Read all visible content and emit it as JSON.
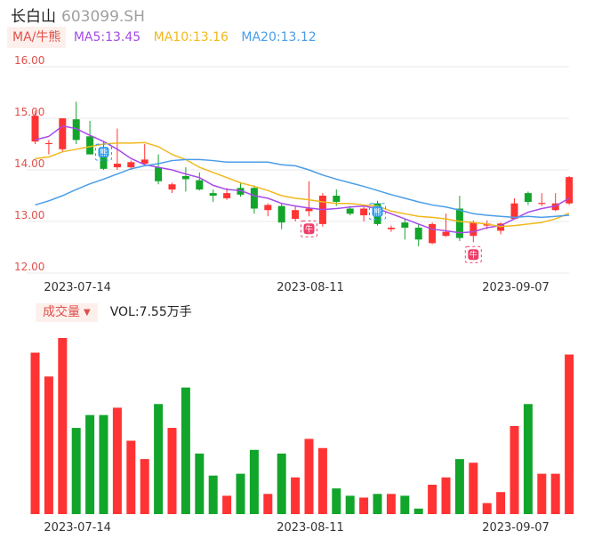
{
  "header": {
    "name": "长白山",
    "code": "603099.SH"
  },
  "ma_legend": {
    "tag": "MA/牛熊",
    "items": [
      {
        "label": "MA5:13.45",
        "color": "#a64ae8"
      },
      {
        "label": "MA10:13.16",
        "color": "#f2b81c"
      },
      {
        "label": "MA20:13.12",
        "color": "#4a9de8"
      }
    ]
  },
  "volume_legend": {
    "tag": "成交量",
    "text": "VOL:7.55万手"
  },
  "colors": {
    "up": "#ff3333",
    "down": "#12a52b",
    "grid": "#e9e9e9",
    "axis_text": "#e0504a",
    "date_text": "#333333",
    "ma5": "#a64ae8",
    "ma10": "#f2b81c",
    "ma20": "#4a9de8"
  },
  "chart_data": {
    "type": "candlestick",
    "y_ticks": [
      "16.00",
      "15.00",
      "14.00",
      "13.00",
      "12.00"
    ],
    "ylim": [
      12.0,
      16.0
    ],
    "x_tick_labels": [
      {
        "index": 3,
        "label": "2023-07-14"
      },
      {
        "index": 20,
        "label": "2023-08-11"
      },
      {
        "index": 35,
        "label": "2023-09-07"
      }
    ],
    "candles": [
      {
        "o": 14.55,
        "h": 15.15,
        "l": 14.5,
        "c": 15.05
      },
      {
        "o": 14.52,
        "h": 14.58,
        "l": 14.3,
        "c": 14.52
      },
      {
        "o": 14.4,
        "h": 15.0,
        "l": 14.35,
        "c": 15.0
      },
      {
        "o": 14.98,
        "h": 15.32,
        "l": 14.5,
        "c": 14.58
      },
      {
        "o": 14.65,
        "h": 14.95,
        "l": 14.3,
        "c": 14.3
      },
      {
        "o": 14.3,
        "h": 14.55,
        "l": 14.0,
        "c": 14.02
      },
      {
        "o": 14.05,
        "h": 14.8,
        "l": 14.0,
        "c": 14.12
      },
      {
        "o": 14.05,
        "h": 14.18,
        "l": 14.0,
        "c": 14.15
      },
      {
        "o": 14.12,
        "h": 14.5,
        "l": 14.1,
        "c": 14.2
      },
      {
        "o": 14.05,
        "h": 14.3,
        "l": 13.72,
        "c": 13.78
      },
      {
        "o": 13.62,
        "h": 13.75,
        "l": 13.55,
        "c": 13.72
      },
      {
        "o": 13.88,
        "h": 14.05,
        "l": 13.58,
        "c": 13.82
      },
      {
        "o": 13.8,
        "h": 13.95,
        "l": 13.6,
        "c": 13.62
      },
      {
        "o": 13.55,
        "h": 13.62,
        "l": 13.38,
        "c": 13.5
      },
      {
        "o": 13.45,
        "h": 13.65,
        "l": 13.42,
        "c": 13.55
      },
      {
        "o": 13.65,
        "h": 13.75,
        "l": 13.48,
        "c": 13.52
      },
      {
        "o": 13.65,
        "h": 13.7,
        "l": 13.15,
        "c": 13.25
      },
      {
        "o": 13.22,
        "h": 13.35,
        "l": 13.1,
        "c": 13.32
      },
      {
        "o": 13.3,
        "h": 13.35,
        "l": 12.85,
        "c": 12.98
      },
      {
        "o": 13.05,
        "h": 13.3,
        "l": 13.0,
        "c": 13.22
      },
      {
        "o": 13.2,
        "h": 13.78,
        "l": 13.1,
        "c": 13.25
      },
      {
        "o": 12.95,
        "h": 13.55,
        "l": 12.9,
        "c": 13.5
      },
      {
        "o": 13.5,
        "h": 13.62,
        "l": 13.3,
        "c": 13.38
      },
      {
        "o": 13.25,
        "h": 13.3,
        "l": 13.12,
        "c": 13.15
      },
      {
        "o": 13.12,
        "h": 13.3,
        "l": 13.0,
        "c": 13.25
      },
      {
        "o": 13.35,
        "h": 13.4,
        "l": 12.92,
        "c": 12.95
      },
      {
        "o": 12.85,
        "h": 12.92,
        "l": 12.8,
        "c": 12.88
      },
      {
        "o": 12.98,
        "h": 13.05,
        "l": 12.65,
        "c": 12.88
      },
      {
        "o": 12.88,
        "h": 12.95,
        "l": 12.52,
        "c": 12.65
      },
      {
        "o": 12.58,
        "h": 12.98,
        "l": 12.56,
        "c": 12.95
      },
      {
        "o": 12.72,
        "h": 13.15,
        "l": 12.7,
        "c": 12.8
      },
      {
        "o": 13.25,
        "h": 13.5,
        "l": 12.62,
        "c": 12.68
      },
      {
        "o": 12.72,
        "h": 13.02,
        "l": 12.6,
        "c": 12.98
      },
      {
        "o": 12.92,
        "h": 13.02,
        "l": 12.85,
        "c": 12.96
      },
      {
        "o": 12.82,
        "h": 12.98,
        "l": 12.75,
        "c": 12.96
      },
      {
        "o": 13.05,
        "h": 13.45,
        "l": 13.05,
        "c": 13.35
      },
      {
        "o": 13.55,
        "h": 13.58,
        "l": 13.32,
        "c": 13.38
      },
      {
        "o": 13.35,
        "h": 13.55,
        "l": 13.3,
        "c": 13.36
      },
      {
        "o": 13.22,
        "h": 13.55,
        "l": 13.2,
        "c": 13.35
      },
      {
        "o": 13.35,
        "h": 13.88,
        "l": 13.32,
        "c": 13.86
      }
    ],
    "series": [
      {
        "name": "MA5",
        "values": [
          14.58,
          14.65,
          14.85,
          14.8,
          14.67,
          14.55,
          14.4,
          14.22,
          14.1,
          14.05,
          14.0,
          13.92,
          13.85,
          13.7,
          13.62,
          13.6,
          13.5,
          13.45,
          13.35,
          13.3,
          13.26,
          13.23,
          13.25,
          13.28,
          13.3,
          13.25,
          13.15,
          13.05,
          12.95,
          12.85,
          12.82,
          12.78,
          12.8,
          12.88,
          12.92,
          13.05,
          13.18,
          13.25,
          13.3,
          13.45
        ]
      },
      {
        "name": "MA10",
        "values": [
          14.22,
          14.25,
          14.35,
          14.4,
          14.45,
          14.5,
          14.52,
          14.52,
          14.53,
          14.45,
          14.3,
          14.2,
          14.05,
          13.95,
          13.85,
          13.75,
          13.68,
          13.6,
          13.5,
          13.45,
          13.42,
          13.38,
          13.35,
          13.35,
          13.32,
          13.3,
          13.2,
          13.15,
          13.1,
          13.08,
          13.05,
          13.0,
          12.98,
          12.95,
          12.9,
          12.92,
          12.95,
          12.98,
          13.05,
          13.16
        ]
      },
      {
        "name": "MA20",
        "values": [
          13.32,
          13.4,
          13.5,
          13.62,
          13.73,
          13.82,
          13.92,
          14.02,
          14.08,
          14.12,
          14.18,
          14.2,
          14.2,
          14.18,
          14.15,
          14.15,
          14.15,
          14.15,
          14.1,
          14.08,
          14.0,
          13.9,
          13.82,
          13.75,
          13.68,
          13.6,
          13.52,
          13.45,
          13.38,
          13.32,
          13.28,
          13.22,
          13.15,
          13.12,
          13.1,
          13.08,
          13.1,
          13.08,
          13.1,
          13.12
        ]
      }
    ],
    "volume": [
      88,
      75,
      96,
      47,
      54,
      54,
      58,
      40,
      30,
      60,
      47,
      69,
      33,
      21,
      10,
      22,
      35,
      11,
      33,
      20,
      41,
      36,
      14,
      10,
      9,
      11,
      11,
      10,
      3,
      16,
      20,
      30,
      28,
      6,
      12,
      48,
      60,
      22,
      22,
      87
    ],
    "markers": [
      {
        "index": 5,
        "type": "sell",
        "text": "熊",
        "position": "above"
      },
      {
        "index": 20,
        "type": "buy",
        "text": "牛",
        "position": "below"
      },
      {
        "index": 25,
        "type": "sell",
        "text": "熊",
        "position": "above"
      },
      {
        "index": 32,
        "type": "buy",
        "text": "牛",
        "position": "below"
      }
    ]
  }
}
